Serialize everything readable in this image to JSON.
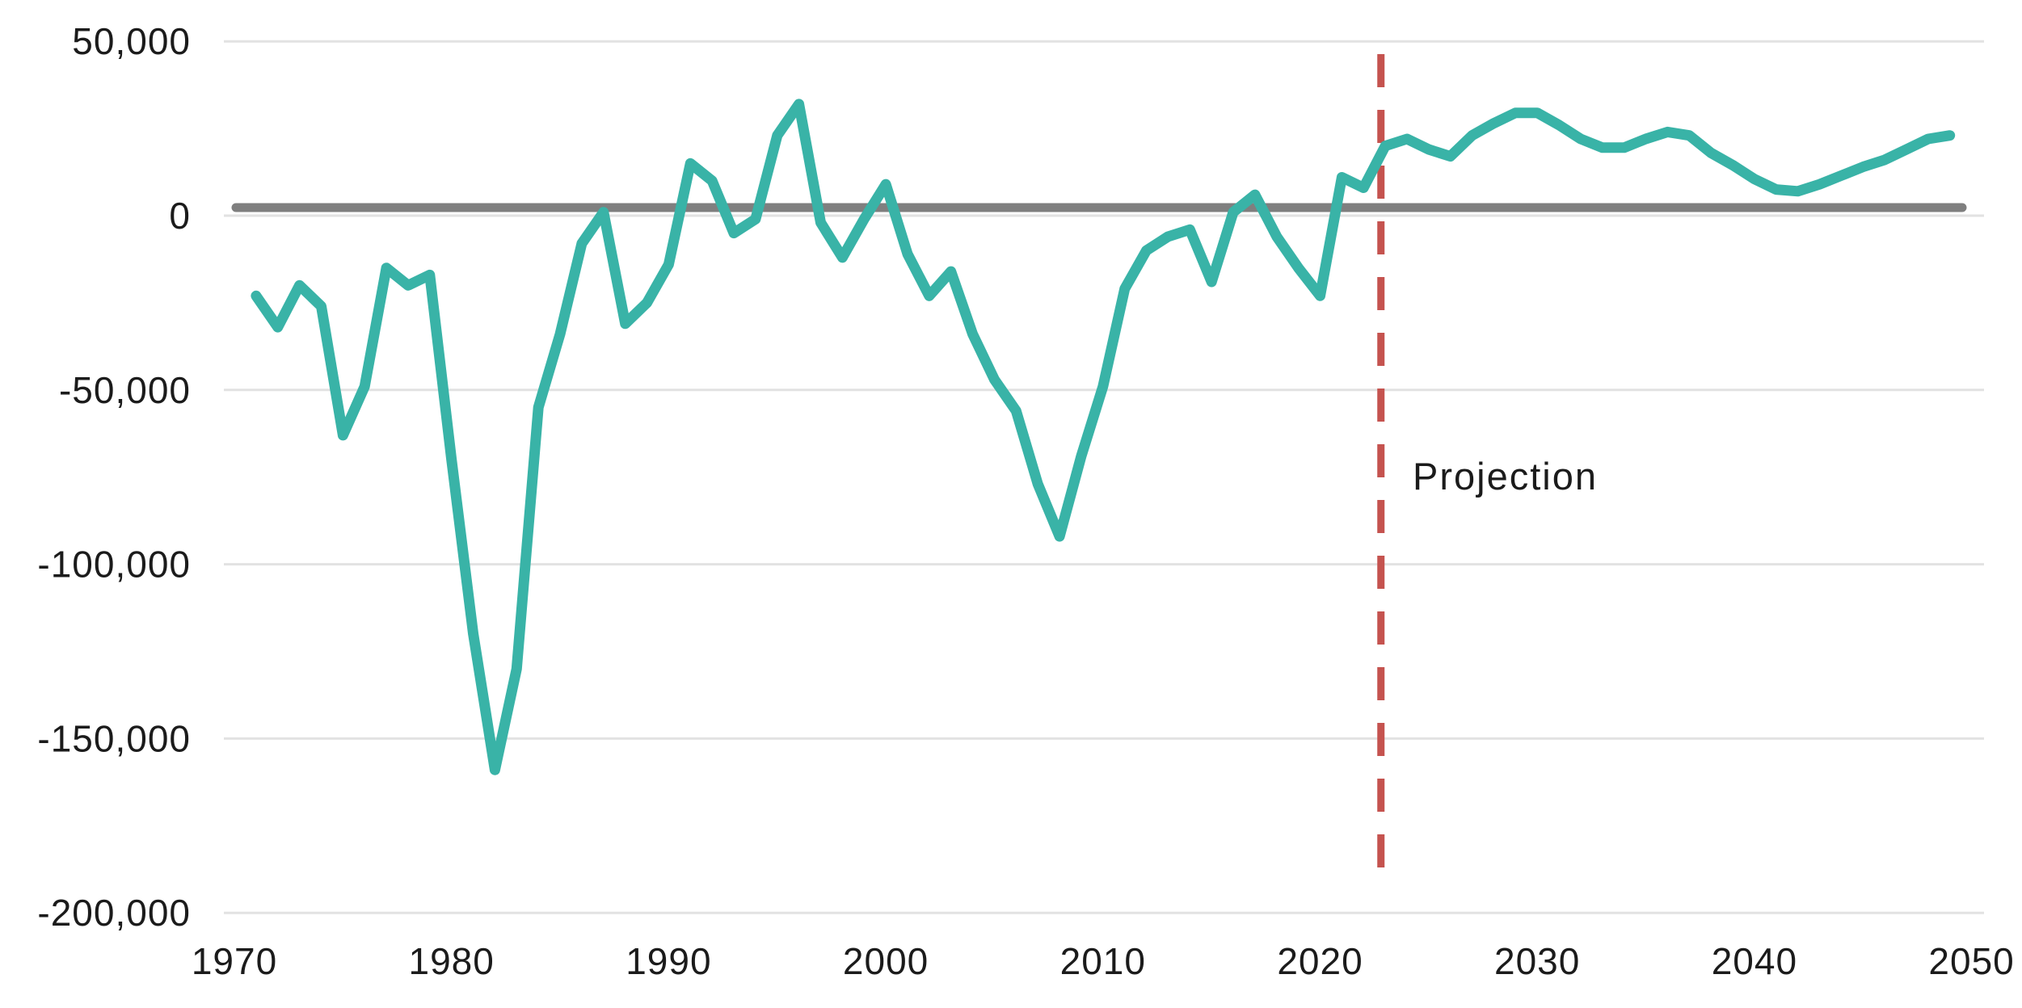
{
  "page": {
    "background_color": "#ffffff",
    "text_color": "#1b1b1b"
  },
  "chart_data": {
    "type": "line",
    "title": "",
    "xlabel": "",
    "ylabel": "",
    "xlim": [
      1970,
      2050
    ],
    "ylim": [
      -200000,
      50000
    ],
    "grid": "horizontal",
    "legend": "none",
    "line_color": "#39b3a7",
    "gridline_color": "#e2e2e2",
    "axis_text_color": "#1b1b1b",
    "xticks": [
      {
        "value": 1970,
        "label": "1970"
      },
      {
        "value": 1980,
        "label": "1980"
      },
      {
        "value": 1990,
        "label": "1990"
      },
      {
        "value": 2000,
        "label": "2000"
      },
      {
        "value": 2010,
        "label": "2010"
      },
      {
        "value": 2020,
        "label": "2020"
      },
      {
        "value": 2030,
        "label": "2030"
      },
      {
        "value": 2040,
        "label": "2040"
      },
      {
        "value": 2050,
        "label": "2050"
      }
    ],
    "yticks": [
      {
        "value": 50000,
        "label": "50,000"
      },
      {
        "value": 0,
        "label": "0"
      },
      {
        "value": -50000,
        "label": "-50,000"
      },
      {
        "value": -100000,
        "label": "-100,000"
      },
      {
        "value": -150000,
        "label": "-150,000"
      },
      {
        "value": -200000,
        "label": "-200,000"
      }
    ],
    "zero_reference_line": {
      "value": 0,
      "color": "#7f7f7f"
    },
    "projection": {
      "label": "Projection",
      "divider_year": 2022.8,
      "color": "#c5534f"
    },
    "x": [
      1971,
      1972,
      1973,
      1974,
      1975,
      1976,
      1977,
      1978,
      1979,
      1980,
      1981,
      1982,
      1983,
      1984,
      1985,
      1986,
      1987,
      1988,
      1989,
      1990,
      1991,
      1992,
      1993,
      1994,
      1995,
      1996,
      1997,
      1998,
      1999,
      2000,
      2001,
      2002,
      2003,
      2004,
      2005,
      2006,
      2007,
      2008,
      2009,
      2010,
      2011,
      2012,
      2013,
      2014,
      2015,
      2016,
      2017,
      2018,
      2019,
      2020,
      2021,
      2022,
      2023,
      2024,
      2025,
      2026,
      2027,
      2028,
      2029,
      2030,
      2031,
      2032,
      2033,
      2034,
      2035,
      2036,
      2037,
      2038,
      2039,
      2040,
      2041,
      2042,
      2043,
      2044,
      2045,
      2046,
      2047,
      2048,
      2049
    ],
    "values": [
      -23000,
      -32000,
      -20000,
      -26000,
      -63000,
      -49000,
      -15000,
      -20000,
      -17000,
      -70000,
      -120000,
      -159000,
      -130000,
      -55000,
      -34000,
      -8000,
      1000,
      -31000,
      -25000,
      -14000,
      15000,
      10000,
      -5000,
      -1000,
      23000,
      32000,
      -2000,
      -12000,
      -1000,
      9000,
      -11000,
      -23000,
      -16000,
      -34000,
      -47000,
      -56000,
      -77000,
      -92000,
      -69000,
      -49000,
      -21000,
      -10000,
      -6000,
      -4000,
      -19000,
      1000,
      6000,
      -6000,
      -15000,
      -23000,
      11000,
      8000,
      20000,
      22000,
      19000,
      17000,
      23000,
      26500,
      29500,
      29500,
      26000,
      22000,
      19500,
      19500,
      22000,
      24000,
      23000,
      18000,
      14500,
      10500,
      7500,
      7000,
      9000,
      11500,
      14000,
      16000,
      19000,
      22000,
      23000
    ]
  }
}
